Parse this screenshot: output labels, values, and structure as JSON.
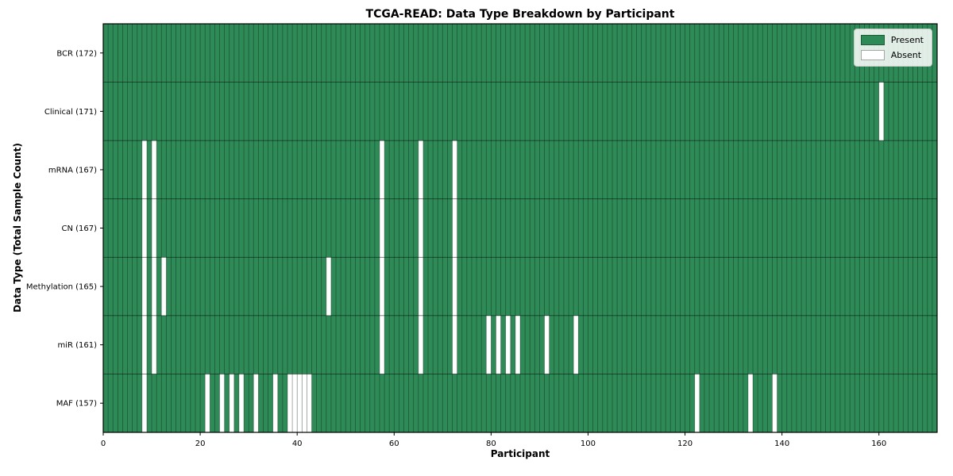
{
  "chart_data": {
    "type": "heatmap",
    "title": "TCGA-READ: Data Type Breakdown by Participant",
    "xlabel": "Participant",
    "ylabel": "Data Type (Total Sample Count)",
    "participant_count": 172,
    "x_range": [
      0,
      172
    ],
    "x_ticks": [
      0,
      20,
      40,
      60,
      80,
      100,
      120,
      140,
      160
    ],
    "grid": true,
    "legend_position": "upper right",
    "legend": [
      {
        "label": "Present",
        "color": "#2e8b57"
      },
      {
        "label": "Absent",
        "color": "#ffffff"
      }
    ],
    "colors": {
      "present": "#2e8b57",
      "absent": "#ffffff",
      "grid_vertical": "rgba(0,0,0,0.38)",
      "grid_horizontal": "rgba(0,0,0,0.55)",
      "border": "#000000",
      "tick": "#000000"
    },
    "rows": [
      {
        "label": "BCR (172)",
        "data_type": "BCR",
        "total": 172,
        "absent_participants": []
      },
      {
        "label": "Clinical (171)",
        "data_type": "Clinical",
        "total": 171,
        "absent_participants": [
          160
        ]
      },
      {
        "label": "mRNA (167)",
        "data_type": "mRNA",
        "total": 167,
        "absent_participants": [
          8,
          10,
          57,
          65,
          72
        ]
      },
      {
        "label": "CN (167)",
        "data_type": "CN",
        "total": 167,
        "absent_participants": [
          8,
          10,
          57,
          65,
          72
        ]
      },
      {
        "label": "Methylation (165)",
        "data_type": "Methylation",
        "total": 165,
        "absent_participants": [
          8,
          10,
          12,
          46,
          57,
          65,
          72
        ]
      },
      {
        "label": "miR (161)",
        "data_type": "miR",
        "total": 161,
        "absent_participants": [
          8,
          10,
          57,
          65,
          72,
          79,
          81,
          83,
          85,
          91,
          97
        ]
      },
      {
        "label": "MAF (157)",
        "data_type": "MAF",
        "total": 157,
        "absent_participants": [
          8,
          21,
          24,
          26,
          28,
          31,
          35,
          38,
          39,
          40,
          41,
          42,
          122,
          133,
          138
        ]
      }
    ]
  }
}
